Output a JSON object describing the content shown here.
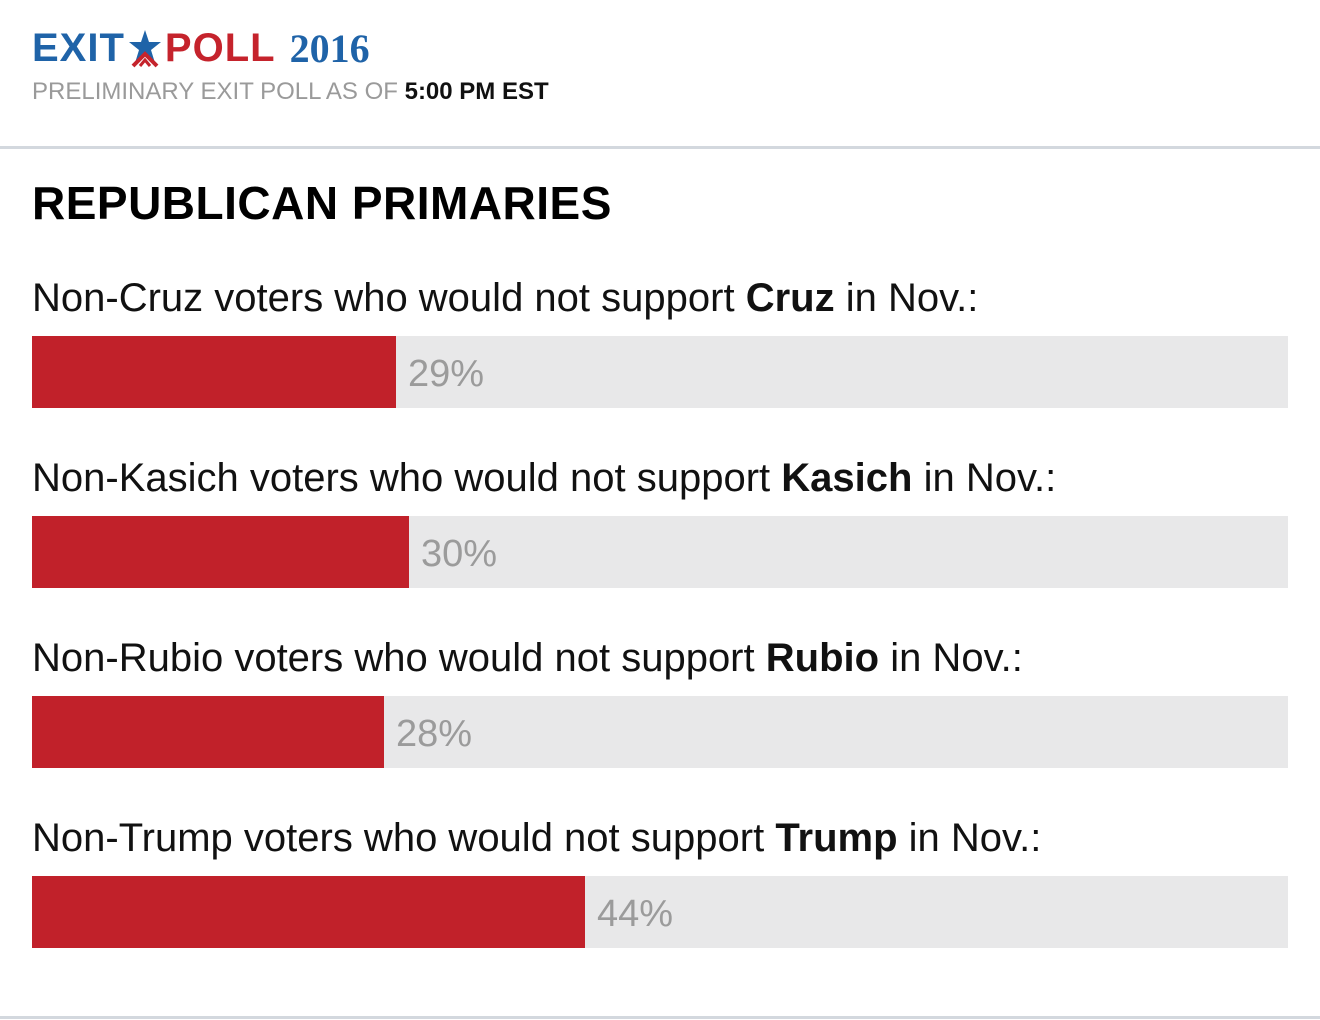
{
  "header": {
    "logo_exit": "EXIT",
    "logo_poll": "POLL",
    "logo_year": "2016",
    "logo_star_icon": "star-icon",
    "subtitle_prefix": "PRELIMINARY EXIT POLL AS OF",
    "subtitle_time": "5:00 PM EST"
  },
  "colors": {
    "brand_blue": "#1f63a8",
    "brand_red": "#c5232c",
    "bar_fill": "#c1212a",
    "bar_track": "#e8e8e9",
    "value_text": "#9b9b9b"
  },
  "chart_data": {
    "type": "bar",
    "orientation": "horizontal",
    "title": "REPUBLICAN PRIMARIES",
    "xlim": [
      0,
      100
    ],
    "unit": "%",
    "rows": [
      {
        "label_prefix": "Non-Cruz voters who would not support",
        "candidate": "Cruz",
        "label_suffix": "in Nov.:",
        "value": 29,
        "value_label": "29%"
      },
      {
        "label_prefix": "Non-Kasich voters who would not support",
        "candidate": "Kasich",
        "label_suffix": "in Nov.:",
        "value": 30,
        "value_label": "30%"
      },
      {
        "label_prefix": "Non-Rubio voters who would not support",
        "candidate": "Rubio",
        "label_suffix": "in Nov.:",
        "value": 28,
        "value_label": "28%"
      },
      {
        "label_prefix": "Non-Trump voters who would not support",
        "candidate": "Trump",
        "label_suffix": "in Nov.:",
        "value": 44,
        "value_label": "44%"
      }
    ]
  }
}
